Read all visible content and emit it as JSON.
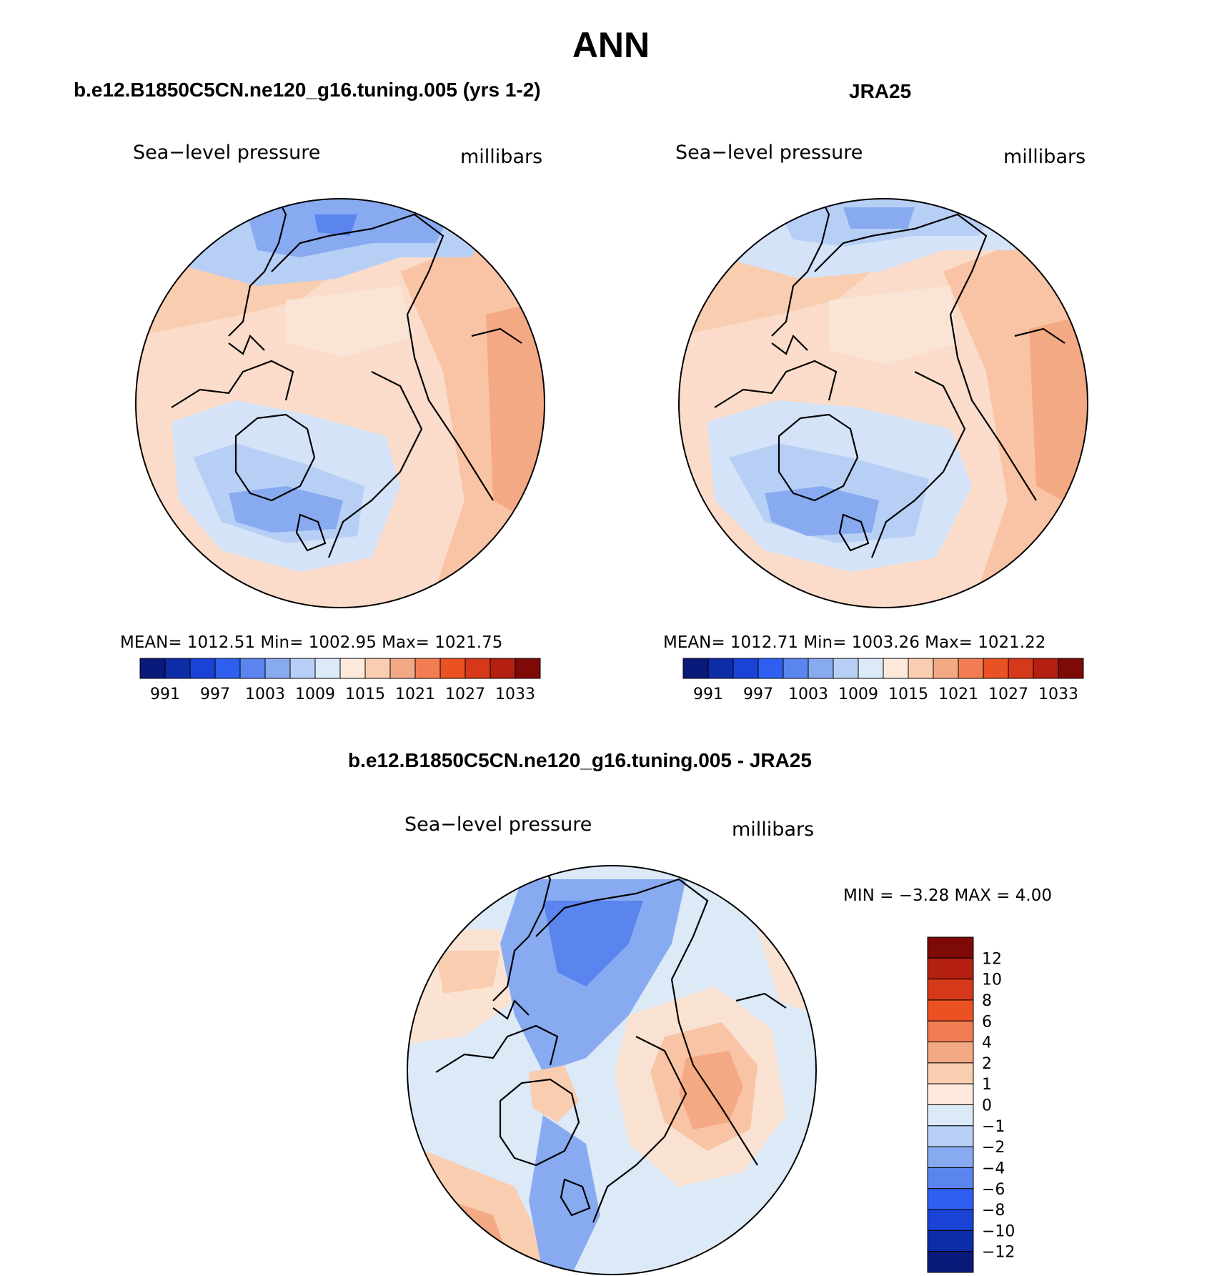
{
  "title": "ANN",
  "panels": [
    {
      "title": "b.e12.B1850C5CN.ne120_g16.tuning.005 (yrs 1-2)",
      "variable": "Sea−level pressure",
      "units": "millibars",
      "stats": "MEAN=  1012.51    Min=  1002.95    Max=  1021.75",
      "colorbar": {
        "tick_labels": [
          "991",
          "997",
          "1003",
          "1009",
          "1015",
          "1021",
          "1027",
          "1033"
        ],
        "colors": [
          "#0a1a7a",
          "#0d2ca8",
          "#1a43d6",
          "#2e5ff0",
          "#5a85ee",
          "#88aaf0",
          "#b8cff5",
          "#dce9f7",
          "#fdeadc",
          "#f9cdb0",
          "#f4a985",
          "#f27d52",
          "#ea5123",
          "#d6391a",
          "#b3200f",
          "#7d0a06"
        ]
      },
      "map_style": {
        "background": "#fce2cf",
        "land_outline": "#000000",
        "regions": [
          {
            "color": "#f5b49a",
            "level": 1018
          },
          {
            "color": "#fae7db",
            "level": 1014
          },
          {
            "color": "#c9daf7",
            "level": 1010
          },
          {
            "color": "#8fb0f2",
            "level": 1006
          },
          {
            "color": "#5a85ee",
            "level": 1002
          }
        ]
      }
    },
    {
      "title": "JRA25",
      "variable": "Sea−level pressure",
      "units": "millibars",
      "stats": "MEAN=  1012.71    Min=  1003.26    Max=  1021.22",
      "colorbar": {
        "tick_labels": [
          "991",
          "997",
          "1003",
          "1009",
          "1015",
          "1021",
          "1027",
          "1033"
        ],
        "colors": [
          "#0a1a7a",
          "#0d2ca8",
          "#1a43d6",
          "#2e5ff0",
          "#5a85ee",
          "#88aaf0",
          "#b8cff5",
          "#dce9f7",
          "#fdeadc",
          "#f9cdb0",
          "#f4a985",
          "#f27d52",
          "#ea5123",
          "#d6391a",
          "#b3200f",
          "#7d0a06"
        ]
      }
    },
    {
      "title": "b.e12.B1850C5CN.ne120_g16.tuning.005 - JRA25",
      "variable": "Sea−level pressure",
      "units": "millibars",
      "stats": "MIN =    −3.28  MAX =     4.00",
      "colorbar": {
        "tick_labels": [
          "12",
          "10",
          "8",
          "6",
          "4",
          "2",
          "1",
          "0",
          "−1",
          "−2",
          "−4",
          "−6",
          "−8",
          "−10",
          "−12"
        ],
        "colors": [
          "#7d0a06",
          "#b3200f",
          "#d6391a",
          "#ea5123",
          "#f27d52",
          "#f4a985",
          "#f9cdb0",
          "#fdeadc",
          "#dce9f7",
          "#b8cff5",
          "#88aaf0",
          "#5a85ee",
          "#2e5ff0",
          "#1a43d6",
          "#0d2ca8",
          "#0a1a7a"
        ]
      }
    }
  ]
}
